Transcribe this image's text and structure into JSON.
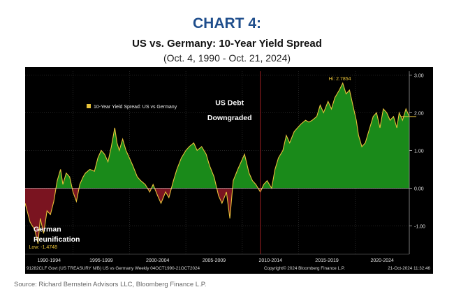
{
  "header": {
    "label": "CHART 4:",
    "title": "US vs. Germany: 10-Year Yield Spread",
    "subtitle": "(Oct. 4, 1990 - Oct. 21, 2024)"
  },
  "footer": {
    "bloomberg_line_left": "91282CLF Govt (US TREASURY N/B) US vs Germany  Weekly 04OCT1990-21OCT2024",
    "bloomberg_line_mid": "Copyright© 2024 Bloomberg Finance L.P.",
    "bloomberg_line_right": "21-Oct-2024 11:32:46",
    "source": "Source: Richard Bernstein Advisors LLC, Bloomberg Finance L.P."
  },
  "colors": {
    "positive_fill": "#1a8a1a",
    "negative_fill": "#7a1420",
    "line": "#e8c23a",
    "background": "#000000",
    "reference_line": "#c0262a"
  },
  "chart_data": {
    "type": "area",
    "title": "US vs. Germany: 10-Year Yield Spread",
    "xlabel": "",
    "ylabel": "",
    "x_range": [
      1990.76,
      2024.8
    ],
    "ylim": [
      -1.75,
      3.1
    ],
    "y_ticks": [
      3,
      2,
      1,
      0,
      -1
    ],
    "y_tick_labels": [
      "3.00",
      "2.00",
      "1.00",
      "0.00",
      "-1.00"
    ],
    "x_period_labels": [
      "1990-1994",
      "1995-1999",
      "2000-2004",
      "2005-2009",
      "2010-2014",
      "2015-2019",
      "2020-2024"
    ],
    "period_boundaries": [
      1995,
      2000,
      2005,
      2010,
      2015,
      2020
    ],
    "grid": true,
    "legend": {
      "placement": "top-left",
      "entries": [
        "10-Year Yield Spread: US vs Germany"
      ]
    },
    "reference_lines": [
      {
        "axis": "y",
        "value": 0
      },
      {
        "axis": "x",
        "value": 2011.6
      }
    ],
    "last_value_marker": 1.9,
    "annotations": [
      {
        "text": "US Debt",
        "x": 2011.6,
        "y": 2.2
      },
      {
        "text": "Downgraded",
        "x": 2011.6,
        "y": 1.8
      },
      {
        "text": "German",
        "x": 1991.5,
        "y": -1.15
      },
      {
        "text": "Reunification",
        "x": 1991.5,
        "y": -1.42
      },
      {
        "text": "Low: -1.4748",
        "x": 1991.1,
        "y": -1.6
      },
      {
        "text": "Hi: 2.7854",
        "x": 2018.9,
        "y": 2.86
      }
    ],
    "series": [
      {
        "name": "10-Year Yield Spread: US vs Germany",
        "x": [
          1990.76,
          1991.2,
          1991.6,
          1991.9,
          1992.1,
          1992.4,
          1992.7,
          1993.0,
          1993.3,
          1993.6,
          1993.9,
          1994.1,
          1994.4,
          1994.7,
          1995.0,
          1995.3,
          1995.6,
          1995.9,
          1996.1,
          1996.5,
          1996.9,
          1997.2,
          1997.5,
          1997.8,
          1998.1,
          1998.4,
          1998.7,
          1998.9,
          1999.1,
          1999.4,
          1999.7,
          2000.0,
          2000.3,
          2000.7,
          2001.0,
          2001.4,
          2001.8,
          2002.1,
          2002.5,
          2002.8,
          2003.2,
          2003.5,
          2003.9,
          2004.2,
          2004.6,
          2005.0,
          2005.3,
          2005.7,
          2006.0,
          2006.4,
          2006.8,
          2007.1,
          2007.5,
          2007.9,
          2008.2,
          2008.6,
          2008.9,
          2009.2,
          2009.6,
          2009.9,
          2010.2,
          2010.6,
          2010.9,
          2011.2,
          2011.6,
          2011.9,
          2012.2,
          2012.6,
          2012.9,
          2013.2,
          2013.6,
          2013.9,
          2014.2,
          2014.6,
          2014.9,
          2015.2,
          2015.6,
          2015.9,
          2016.2,
          2016.6,
          2016.9,
          2017.2,
          2017.6,
          2017.9,
          2018.2,
          2018.6,
          2018.9,
          2019.2,
          2019.5,
          2019.8,
          2020.1,
          2020.3,
          2020.6,
          2020.9,
          2021.2,
          2021.6,
          2021.9,
          2022.2,
          2022.5,
          2022.8,
          2023.1,
          2023.4,
          2023.7,
          2023.9,
          2024.2,
          2024.5,
          2024.8
        ],
        "values": [
          -0.4,
          -0.9,
          -1.1,
          -1.47,
          -0.8,
          -1.2,
          -0.6,
          -0.7,
          -0.35,
          0.2,
          0.5,
          0.1,
          0.4,
          0.3,
          -0.1,
          -0.35,
          0.1,
          0.3,
          0.4,
          0.5,
          0.45,
          0.8,
          1.0,
          0.9,
          0.7,
          1.1,
          1.6,
          1.2,
          1.0,
          1.3,
          1.0,
          0.8,
          0.6,
          0.3,
          0.2,
          0.1,
          -0.1,
          0.1,
          -0.2,
          -0.4,
          -0.1,
          -0.25,
          0.2,
          0.5,
          0.8,
          1.0,
          1.1,
          1.2,
          1.0,
          1.1,
          0.9,
          0.6,
          0.3,
          -0.2,
          -0.4,
          -0.1,
          -0.8,
          0.2,
          0.5,
          0.7,
          0.9,
          0.4,
          0.2,
          0.1,
          -0.1,
          0.1,
          0.2,
          0.0,
          0.5,
          0.8,
          1.0,
          1.4,
          1.2,
          1.5,
          1.6,
          1.7,
          1.8,
          1.75,
          1.8,
          1.9,
          2.2,
          2.0,
          2.3,
          2.1,
          2.4,
          2.6,
          2.785,
          2.5,
          2.6,
          2.2,
          1.8,
          1.4,
          1.1,
          1.2,
          1.5,
          1.9,
          2.0,
          1.6,
          2.1,
          2.0,
          1.8,
          1.9,
          1.6,
          2.0,
          1.8,
          2.1,
          1.9
        ]
      }
    ]
  }
}
